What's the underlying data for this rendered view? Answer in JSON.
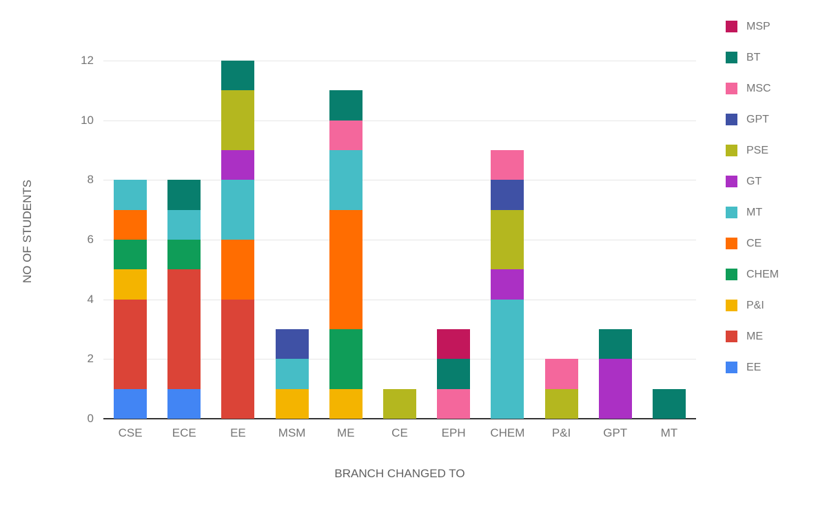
{
  "chart_data": {
    "type": "bar",
    "variant": "stacked-column",
    "title": "",
    "xlabel": "BRANCH CHANGED TO",
    "ylabel": "NO OF STUDENTS",
    "categories": [
      "CSE",
      "ECE",
      "EE",
      "MSM",
      "ME",
      "CE",
      "EPH",
      "CHEM",
      "P&I",
      "GPT",
      "MT"
    ],
    "ylim": [
      0,
      12
    ],
    "y_ticks": [
      0,
      2,
      4,
      6,
      8,
      10,
      12
    ],
    "grid": true,
    "legend_position": "right",
    "legend_order": "reversed",
    "series": [
      {
        "name": "EE",
        "color": "#4285F4",
        "values": [
          1,
          1,
          0,
          0,
          0,
          0,
          0,
          0,
          0,
          0,
          0
        ]
      },
      {
        "name": "ME",
        "color": "#DB4437",
        "values": [
          3,
          4,
          4,
          0,
          0,
          0,
          0,
          0,
          0,
          0,
          0
        ]
      },
      {
        "name": "P&I",
        "color": "#F4B400",
        "values": [
          1,
          0,
          0,
          1,
          1,
          0,
          0,
          0,
          0,
          0,
          0
        ]
      },
      {
        "name": "CHEM",
        "color": "#0F9D58",
        "values": [
          1,
          1,
          0,
          0,
          2,
          0,
          0,
          0,
          0,
          0,
          0
        ]
      },
      {
        "name": "CE",
        "color": "#FF6D01",
        "values": [
          1,
          0,
          2,
          0,
          4,
          0,
          0,
          0,
          0,
          0,
          0
        ]
      },
      {
        "name": "MT",
        "color": "#46BDC6",
        "values": [
          1,
          1,
          2,
          1,
          2,
          0,
          0,
          4,
          0,
          0,
          0
        ]
      },
      {
        "name": "GT",
        "color": "#AB30C4",
        "values": [
          0,
          0,
          1,
          0,
          0,
          0,
          0,
          1,
          0,
          2,
          0
        ]
      },
      {
        "name": "PSE",
        "color": "#B4B71F",
        "values": [
          0,
          0,
          2,
          0,
          0,
          1,
          0,
          2,
          1,
          0,
          0
        ]
      },
      {
        "name": "GPT",
        "color": "#3F51A5",
        "values": [
          0,
          0,
          0,
          1,
          0,
          0,
          0,
          1,
          0,
          0,
          0
        ]
      },
      {
        "name": "MSC",
        "color": "#F4679C",
        "values": [
          0,
          0,
          0,
          0,
          1,
          0,
          1,
          1,
          1,
          0,
          0
        ]
      },
      {
        "name": "BT",
        "color": "#087E6D",
        "values": [
          0,
          1,
          1,
          0,
          1,
          0,
          1,
          0,
          0,
          1,
          1
        ]
      },
      {
        "name": "MSP",
        "color": "#C2175B",
        "values": [
          0,
          0,
          0,
          0,
          0,
          0,
          1,
          0,
          0,
          0,
          0
        ]
      }
    ]
  }
}
